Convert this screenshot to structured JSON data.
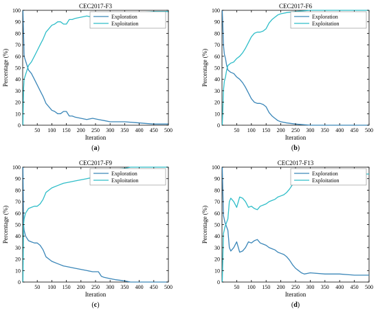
{
  "colors": {
    "exploration": "#3a86b8",
    "exploitation": "#2ebdc8",
    "axis": "#000000"
  },
  "chart_data": [
    {
      "type": "line",
      "title": "CEC2017-F3",
      "caption": "(a)",
      "xlabel": "Iteration",
      "ylabel": "Percentage (%)",
      "xlim": [
        0,
        500
      ],
      "ylim": [
        0,
        100
      ],
      "xticks": [
        50,
        100,
        150,
        200,
        250,
        300,
        350,
        400,
        450,
        500
      ],
      "yticks": [
        0,
        10,
        20,
        30,
        40,
        50,
        60,
        70,
        80,
        90,
        100
      ],
      "grid": false,
      "legend": "top-right",
      "series": [
        {
          "name": "Exploration",
          "color": "exploration",
          "x": [
            1,
            5,
            10,
            20,
            30,
            40,
            50,
            60,
            70,
            80,
            90,
            100,
            110,
            120,
            130,
            140,
            150,
            160,
            170,
            180,
            200,
            220,
            240,
            260,
            280,
            300,
            350,
            400,
            450,
            500
          ],
          "y": [
            100,
            60,
            56,
            48,
            45,
            40,
            35,
            30,
            25,
            19,
            16,
            13,
            12,
            10,
            10,
            12,
            12,
            8,
            8,
            7,
            6,
            5,
            6,
            5,
            4,
            3,
            3,
            2,
            1,
            1
          ]
        },
        {
          "name": "Exploitation",
          "color": "exploitation",
          "x": [
            1,
            3,
            5,
            10,
            20,
            30,
            40,
            50,
            60,
            70,
            80,
            90,
            100,
            110,
            120,
            130,
            140,
            150,
            160,
            170,
            180,
            200,
            220,
            240,
            260,
            280,
            300,
            350,
            400,
            450,
            500
          ],
          "y": [
            0,
            32,
            40,
            44,
            52,
            55,
            60,
            65,
            70,
            75,
            81,
            84,
            87,
            88,
            90,
            90,
            88,
            88,
            92,
            92,
            93,
            94,
            95,
            94,
            95,
            96,
            97,
            97,
            98,
            99,
            99
          ]
        }
      ]
    },
    {
      "type": "line",
      "title": "CEC2017-F6",
      "caption": "(b)",
      "xlabel": "Iteration",
      "ylabel": "Percentage (%)",
      "xlim": [
        0,
        500
      ],
      "ylim": [
        0,
        100
      ],
      "xticks": [
        50,
        100,
        150,
        200,
        250,
        300,
        350,
        400,
        450,
        500
      ],
      "yticks": [
        0,
        10,
        20,
        30,
        40,
        50,
        60,
        70,
        80,
        90,
        100
      ],
      "grid": false,
      "legend": "top-right",
      "series": [
        {
          "name": "Exploration",
          "color": "exploration",
          "x": [
            1,
            3,
            5,
            8,
            12,
            16,
            20,
            30,
            40,
            50,
            60,
            70,
            80,
            90,
            100,
            110,
            120,
            130,
            140,
            150,
            160,
            170,
            180,
            190,
            200,
            220,
            250,
            300,
            350,
            400,
            450,
            500
          ],
          "y": [
            100,
            85,
            70,
            62,
            58,
            52,
            48,
            46,
            45,
            42,
            40,
            37,
            33,
            28,
            23,
            20,
            19,
            19,
            18,
            16,
            11,
            8,
            6,
            4,
            3,
            2,
            1,
            0,
            0,
            0,
            0,
            0
          ]
        },
        {
          "name": "Exploitation",
          "color": "exploitation",
          "x": [
            1,
            3,
            5,
            8,
            12,
            16,
            20,
            30,
            40,
            50,
            60,
            70,
            80,
            90,
            100,
            110,
            120,
            130,
            140,
            150,
            160,
            170,
            180,
            190,
            200,
            220,
            250,
            300,
            350,
            400,
            450,
            500
          ],
          "y": [
            0,
            15,
            30,
            38,
            42,
            48,
            52,
            54,
            55,
            58,
            60,
            63,
            67,
            72,
            77,
            80,
            81,
            81,
            82,
            84,
            89,
            92,
            94,
            96,
            97,
            98,
            99,
            100,
            100,
            100,
            100,
            100
          ]
        }
      ]
    },
    {
      "type": "line",
      "title": "CEC2017-F9",
      "caption": "(c)",
      "xlabel": "Iteration",
      "ylabel": "Percentage (%)",
      "xlim": [
        0,
        500
      ],
      "ylim": [
        0,
        100
      ],
      "xticks": [
        50,
        100,
        150,
        200,
        250,
        300,
        350,
        400,
        450,
        500
      ],
      "yticks": [
        0,
        10,
        20,
        30,
        40,
        50,
        60,
        70,
        80,
        90,
        100
      ],
      "grid": false,
      "legend": "top-right",
      "series": [
        {
          "name": "Exploration",
          "color": "exploration",
          "x": [
            1,
            3,
            5,
            10,
            20,
            30,
            40,
            50,
            60,
            70,
            80,
            90,
            100,
            120,
            140,
            160,
            180,
            200,
            220,
            240,
            260,
            270,
            280,
            300,
            320,
            350,
            370,
            400,
            450,
            500
          ],
          "y": [
            100,
            50,
            45,
            40,
            36,
            35,
            34,
            34,
            32,
            28,
            22,
            20,
            18,
            16,
            14,
            13,
            12,
            11,
            10,
            9,
            9,
            5,
            4,
            3,
            2,
            1,
            0,
            0,
            0,
            0
          ]
        },
        {
          "name": "Exploitation",
          "color": "exploitation",
          "x": [
            1,
            3,
            5,
            10,
            20,
            30,
            40,
            50,
            60,
            70,
            80,
            90,
            100,
            120,
            140,
            160,
            180,
            200,
            220,
            240,
            260,
            270,
            280,
            300,
            320,
            350,
            370,
            400,
            450,
            500
          ],
          "y": [
            0,
            50,
            55,
            60,
            64,
            65,
            66,
            66,
            68,
            72,
            78,
            80,
            82,
            84,
            86,
            87,
            88,
            89,
            90,
            91,
            91,
            95,
            96,
            97,
            98,
            99,
            100,
            100,
            100,
            100
          ]
        }
      ]
    },
    {
      "type": "line",
      "title": "CEC2017-F13",
      "caption": "(d)",
      "xlabel": "Iteration",
      "ylabel": "Percentage (%)",
      "xlim": [
        0,
        500
      ],
      "ylim": [
        0,
        100
      ],
      "xticks": [
        50,
        100,
        150,
        200,
        250,
        300,
        350,
        400,
        450,
        500
      ],
      "yticks": [
        0,
        10,
        20,
        30,
        40,
        50,
        60,
        70,
        80,
        90,
        100
      ],
      "grid": false,
      "legend": "top-right",
      "series": [
        {
          "name": "Exploration",
          "color": "exploration",
          "x": [
            1,
            5,
            10,
            20,
            25,
            30,
            40,
            50,
            60,
            70,
            80,
            90,
            100,
            110,
            120,
            130,
            140,
            150,
            160,
            170,
            180,
            190,
            200,
            210,
            220,
            230,
            240,
            250,
            260,
            270,
            280,
            300,
            350,
            400,
            450,
            500
          ],
          "y": [
            100,
            58,
            52,
            45,
            30,
            27,
            30,
            35,
            26,
            27,
            30,
            35,
            34,
            36,
            37,
            34,
            33,
            32,
            30,
            29,
            28,
            26,
            25,
            24,
            22,
            19,
            15,
            12,
            10,
            8,
            7,
            8,
            7,
            7,
            6,
            6
          ]
        },
        {
          "name": "Exploitation",
          "color": "exploitation",
          "x": [
            1,
            5,
            10,
            20,
            25,
            30,
            40,
            50,
            60,
            70,
            80,
            90,
            100,
            110,
            120,
            130,
            140,
            150,
            160,
            170,
            180,
            190,
            200,
            210,
            220,
            230,
            240,
            250,
            260,
            270,
            280,
            300,
            350,
            400,
            450,
            500
          ],
          "y": [
            0,
            42,
            48,
            55,
            70,
            73,
            70,
            65,
            74,
            73,
            70,
            65,
            66,
            64,
            63,
            66,
            67,
            68,
            70,
            71,
            72,
            74,
            75,
            76,
            78,
            81,
            85,
            88,
            90,
            92,
            93,
            92,
            93,
            93,
            94,
            94
          ]
        }
      ]
    }
  ]
}
